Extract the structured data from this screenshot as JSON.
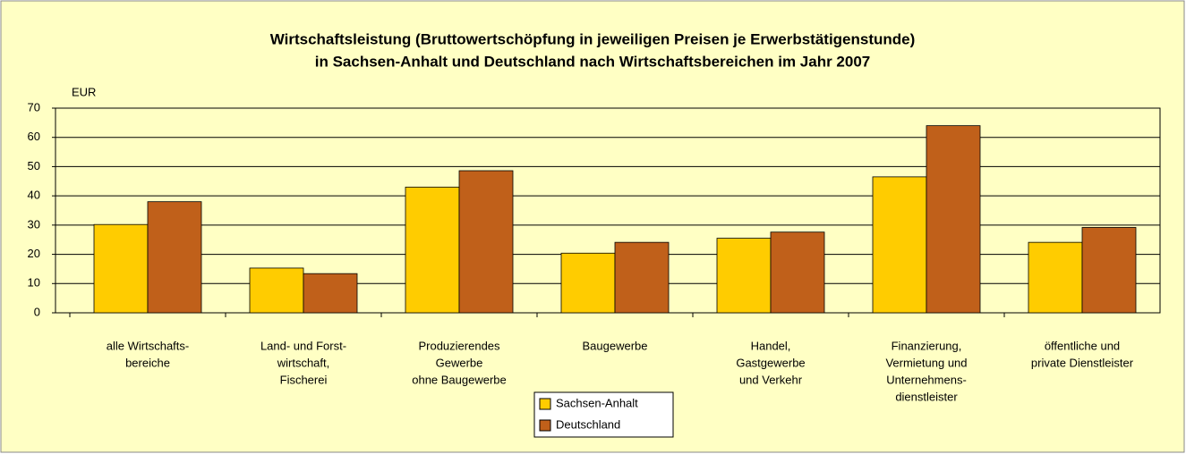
{
  "chart_data": {
    "type": "bar",
    "title": [
      "Wirtschaftsleistung (Bruttowertschöpfung in jeweiligen Preisen je Erwerbstätigenstunde)",
      "in Sachsen-Anhalt und Deutschland nach Wirtschaftsbereichen im Jahr 2007"
    ],
    "y_axis_label": "EUR",
    "categories": [
      [
        "alle Wirtschafts-",
        "bereiche"
      ],
      [
        "Land- und Forst-",
        "wirtschaft,",
        "Fischerei"
      ],
      [
        "Produzierendes",
        "Gewerbe",
        "ohne Baugewerbe"
      ],
      [
        "Baugewerbe"
      ],
      [
        "Handel,",
        "Gastgewerbe",
        "und Verkehr"
      ],
      [
        "Finanzierung,",
        "Vermietung und",
        "Unternehmens-",
        "dienstleister"
      ],
      [
        "öffentliche und",
        "private Dienstleister"
      ]
    ],
    "series": [
      {
        "name": "Sachsen-Anhalt",
        "color": "#ffcc00",
        "values": [
          30.2,
          15.3,
          43.0,
          20.4,
          25.5,
          46.5,
          24.1
        ]
      },
      {
        "name": "Deutschland",
        "color": "#c0601a",
        "values": [
          38.0,
          13.4,
          48.6,
          24.1,
          27.6,
          64.0,
          29.2
        ]
      }
    ],
    "ylim": [
      0,
      70
    ],
    "yticks": [
      0,
      10,
      20,
      30,
      40,
      50,
      60,
      70
    ],
    "grid": true,
    "legend": "bottom"
  }
}
